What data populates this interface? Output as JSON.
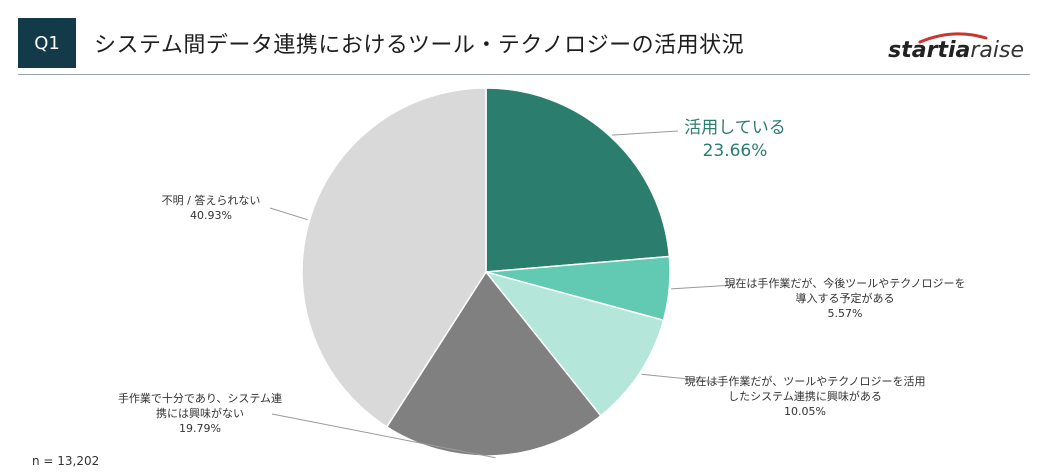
{
  "header": {
    "badge": "Q1",
    "title": "システム間データ連携におけるツール・テクノロジーの活用状況",
    "brand_bold": "startia",
    "brand_light": "raise"
  },
  "footnote": "n = 13,202",
  "colors": {
    "accent": "#2b7d6e",
    "badge_bg": "#123a48"
  },
  "chart_data": {
    "type": "pie",
    "start_angle_deg": 0,
    "direction": "clockwise",
    "slices": [
      {
        "label": "活用している",
        "value": 23.66,
        "display": "23.66%",
        "color": "#2b7d6e",
        "label_color": "#2b7d6e",
        "highlight": true
      },
      {
        "label": "現在は手作業だが、今後ツールやテクノロジーを導入する予定がある",
        "value": 5.57,
        "display": "5.57%",
        "color": "#62c9b2",
        "label_color": "#333333",
        "highlight": false
      },
      {
        "label": "現在は手作業だが、ツールやテクノロジーを活用したシステム連携に興味がある",
        "value": 10.05,
        "display": "10.05%",
        "color": "#b4e6d9",
        "label_color": "#333333",
        "highlight": false
      },
      {
        "label": "手作業で十分であり、システム連携には興味がない",
        "value": 19.79,
        "display": "19.79%",
        "color": "#808080",
        "label_color": "#333333",
        "highlight": false
      },
      {
        "label": "不明 / 答えられない",
        "value": 40.93,
        "display": "40.93%",
        "color": "#d9d9d9",
        "label_color": "#333333",
        "highlight": false
      }
    ]
  }
}
